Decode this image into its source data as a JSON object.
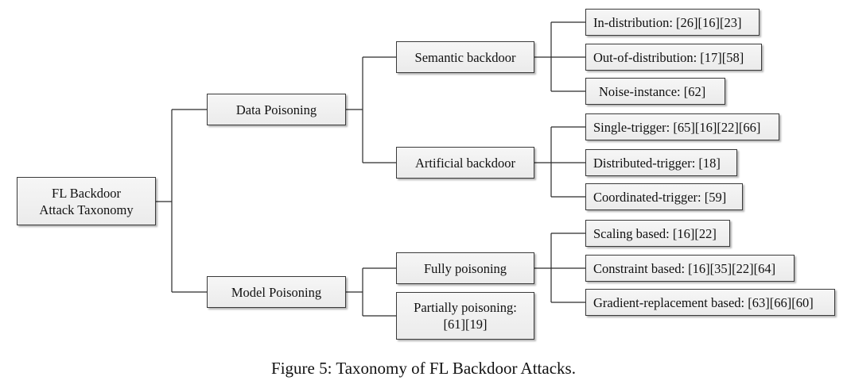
{
  "diagram": {
    "root": "FL Backdoor\nAttack Taxonomy",
    "level1": [
      "Data Poisoning",
      "Model Poisoning"
    ],
    "level2": [
      "Semantic backdoor",
      "Artificial backdoor",
      "Fully poisoning",
      "Partially poisoning:\n[61][19]"
    ],
    "leaves": [
      "In-distribution: [26][16][23]",
      "Out-of-distribution: [17][58]",
      "Noise-instance: [62]",
      "Single-trigger: [65][16][22][66]",
      "Distributed-trigger: [18]",
      "Coordinated-trigger: [59]",
      "Scaling based: [16][22]",
      "Constraint based: [16][35][22][64]",
      "Gradient-replacement based: [63][66][60]"
    ]
  },
  "caption": "Figure 5: Taxonomy of FL Backdoor Attacks."
}
